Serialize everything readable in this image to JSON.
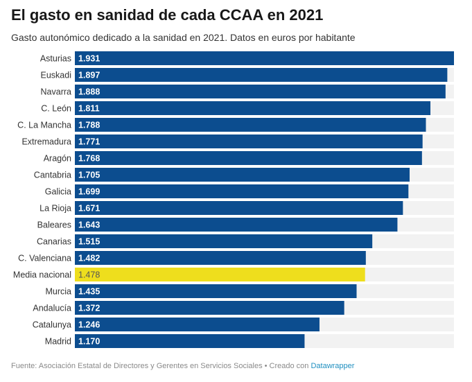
{
  "title": "El gasto en sanidad de cada CCAA en 2021",
  "subtitle": "Gasto autonómico dedicado a la sanidad en 2021. Datos en euros por habitante",
  "footer": {
    "source": "Fuente: Asociación Estatal de Directores y Gerentes en Servicios Sociales • Creado con ",
    "tool": "Datawrapper"
  },
  "colors": {
    "bar": "#0c4d8f",
    "highlight": "#eede1d",
    "track": "#f2f2f2",
    "label_on_bar": "#ffffff",
    "label_on_highlight": "#555555"
  },
  "chart_data": {
    "type": "bar",
    "orientation": "horizontal",
    "categories": [
      "Asturias",
      "Euskadi",
      "Navarra",
      "C. León",
      "C. La Mancha",
      "Extremadura",
      "Aragón",
      "Cantabria",
      "Galicia",
      "La Rioja",
      "Baleares",
      "Canarias",
      "C. Valenciana",
      "Media nacional",
      "Murcia",
      "Andalucía",
      "Catalunya",
      "Madrid"
    ],
    "values": [
      1931,
      1897,
      1888,
      1811,
      1788,
      1771,
      1768,
      1705,
      1699,
      1671,
      1643,
      1515,
      1482,
      1478,
      1435,
      1372,
      1246,
      1170
    ],
    "value_labels": [
      "1.931",
      "1.897",
      "1.888",
      "1.811",
      "1.788",
      "1.771",
      "1.768",
      "1.705",
      "1.699",
      "1.671",
      "1.643",
      "1.515",
      "1.482",
      "1.478",
      "1.435",
      "1.372",
      "1.246",
      "1.170"
    ],
    "highlighted": "Media nacional",
    "xlim": [
      0,
      1931
    ],
    "grid": false,
    "legend": "none"
  }
}
